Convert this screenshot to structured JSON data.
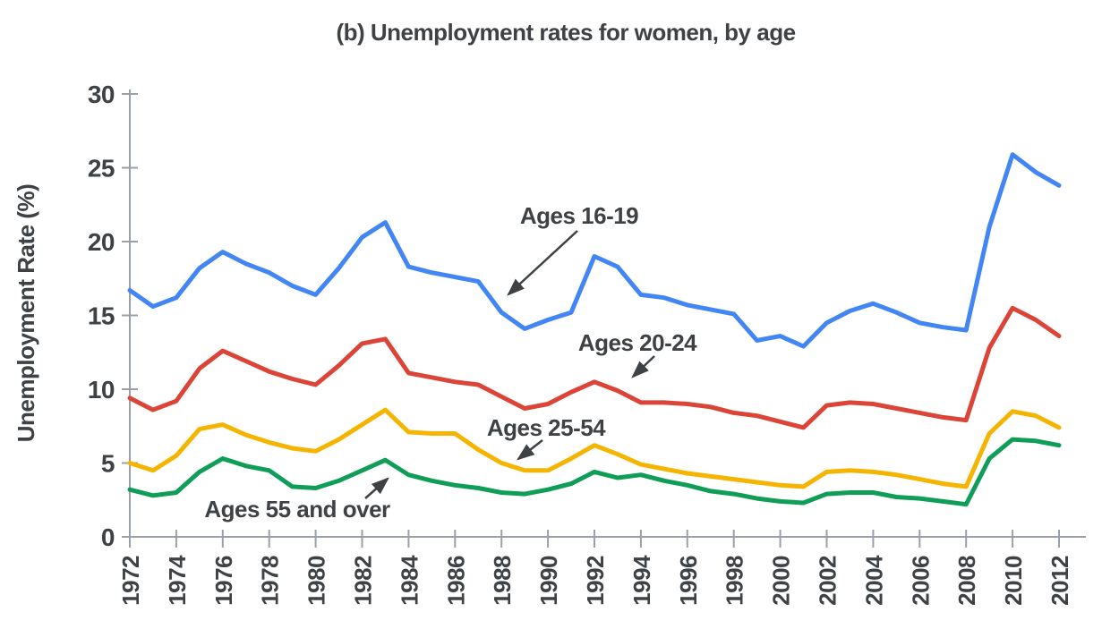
{
  "title": "(b) Unemployment rates for women, by age",
  "y_axis_title": "Unemployment Rate (%)",
  "chart_data": {
    "type": "line",
    "title": "(b) Unemployment rates for women, by age",
    "xlabel": "",
    "ylabel": "Unemployment Rate (%)",
    "ylim": [
      0,
      30
    ],
    "grid": false,
    "legend": "inline-annotations",
    "y_ticks": [
      0,
      5,
      10,
      15,
      20,
      25,
      30
    ],
    "x_tick_labels": [
      1972,
      1974,
      1976,
      1978,
      1980,
      1982,
      1984,
      1986,
      1988,
      1990,
      1992,
      1994,
      1996,
      1998,
      2000,
      2002,
      2004,
      2006,
      2008,
      2010,
      2012
    ],
    "x": [
      1972,
      1973,
      1974,
      1975,
      1976,
      1977,
      1978,
      1979,
      1980,
      1981,
      1982,
      1983,
      1984,
      1985,
      1986,
      1987,
      1988,
      1989,
      1990,
      1991,
      1992,
      1993,
      1994,
      1995,
      1996,
      1997,
      1998,
      1999,
      2000,
      2001,
      2002,
      2003,
      2004,
      2005,
      2006,
      2007,
      2008,
      2009,
      2010,
      2011,
      2012
    ],
    "series": [
      {
        "name": "Ages 16-19",
        "color": "#4285F4",
        "values": [
          16.7,
          15.6,
          16.2,
          18.2,
          19.3,
          18.5,
          17.9,
          17.0,
          16.4,
          18.2,
          20.3,
          21.3,
          18.3,
          17.9,
          17.6,
          17.3,
          15.2,
          14.1,
          14.7,
          15.2,
          19.0,
          18.3,
          16.4,
          16.2,
          15.7,
          15.4,
          15.1,
          13.3,
          13.6,
          12.9,
          14.5,
          15.3,
          15.8,
          15.2,
          14.5,
          14.2,
          14.0,
          21.0,
          25.9,
          24.7,
          23.8
        ]
      },
      {
        "name": "Ages 20-24",
        "color": "#DB4437",
        "values": [
          9.4,
          8.6,
          9.2,
          11.4,
          12.6,
          11.9,
          11.2,
          10.7,
          10.3,
          11.6,
          13.1,
          13.4,
          11.1,
          10.8,
          10.5,
          10.3,
          9.5,
          8.7,
          9.0,
          9.8,
          10.5,
          9.9,
          9.1,
          9.1,
          9.0,
          8.8,
          8.4,
          8.2,
          7.8,
          7.4,
          8.9,
          9.1,
          9.0,
          8.7,
          8.4,
          8.1,
          7.9,
          12.8,
          15.5,
          14.7,
          13.6
        ]
      },
      {
        "name": "Ages 25-54",
        "color": "#F4B400",
        "values": [
          5.0,
          4.5,
          5.5,
          7.3,
          7.6,
          6.9,
          6.4,
          6.0,
          5.8,
          6.6,
          7.6,
          8.6,
          7.1,
          7.0,
          7.0,
          5.9,
          5.0,
          4.5,
          4.5,
          5.3,
          6.2,
          5.6,
          4.9,
          4.6,
          4.3,
          4.1,
          3.9,
          3.7,
          3.5,
          3.4,
          4.4,
          4.5,
          4.4,
          4.2,
          3.9,
          3.6,
          3.4,
          7.0,
          8.5,
          8.2,
          7.4
        ]
      },
      {
        "name": "Ages 55 and over",
        "color": "#0F9D58",
        "values": [
          3.2,
          2.8,
          3.0,
          4.4,
          5.3,
          4.8,
          4.5,
          3.4,
          3.3,
          3.8,
          4.5,
          5.2,
          4.2,
          3.8,
          3.5,
          3.3,
          3.0,
          2.9,
          3.2,
          3.6,
          4.4,
          4.0,
          4.2,
          3.8,
          3.5,
          3.1,
          2.9,
          2.6,
          2.4,
          2.3,
          2.9,
          3.0,
          3.0,
          2.7,
          2.6,
          2.4,
          2.2,
          5.3,
          6.6,
          6.5,
          6.2
        ]
      }
    ],
    "annotations": [
      {
        "label": "Ages 16-19",
        "points_to": "blue line near 1988"
      },
      {
        "label": "Ages 20-24",
        "points_to": "red line near 1993"
      },
      {
        "label": "Ages 25-54",
        "points_to": "yellow line near 1988"
      },
      {
        "label": "Ages 55 and over",
        "points_to": "green line near 1983"
      }
    ],
    "colors": {
      "ages_16_19": "#4285F4",
      "ages_20_24": "#DB4437",
      "ages_25_54": "#F4B400",
      "ages_55_over": "#0F9D58",
      "text": "#3F4245",
      "axis": "#9BA0A6"
    }
  }
}
